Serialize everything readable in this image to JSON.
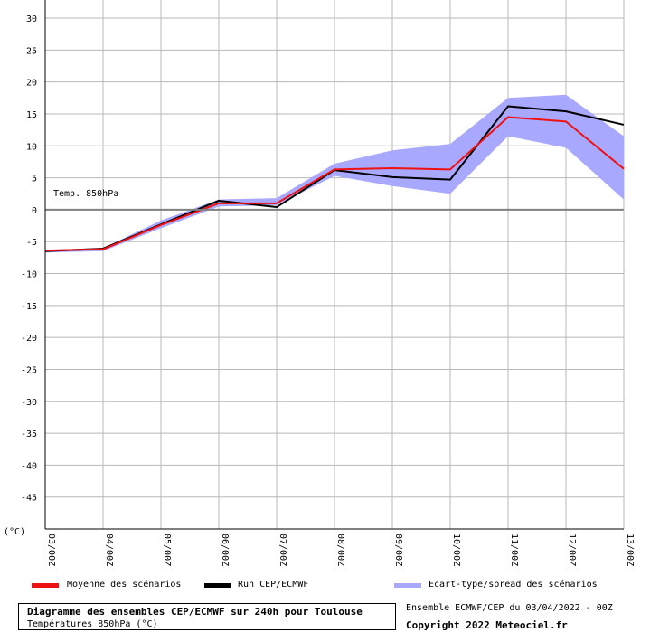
{
  "chart_data": {
    "type": "line",
    "title": "Diagramme des ensembles CEP/ECMWF sur 240h pour Toulouse",
    "subtitle": "Températures 850hPa (°C)",
    "annotation": "Temp. 850hPa",
    "unit_label": "(°C)",
    "ylim": [
      -50,
      30
    ],
    "y_ticks": [
      30,
      25,
      20,
      15,
      10,
      5,
      0,
      -5,
      -10,
      -15,
      -20,
      -25,
      -30,
      -35,
      -40,
      -45
    ],
    "categories": [
      "03/00Z",
      "04/00Z",
      "05/00Z",
      "06/00Z",
      "07/00Z",
      "08/00Z",
      "09/00Z",
      "10/00Z",
      "11/00Z",
      "12/00Z",
      "13/00Z"
    ],
    "grid": true,
    "series": [
      {
        "name": "Moyenne des scénarios",
        "color": "#ee1111",
        "values": [
          -6.4,
          -6.2,
          -2.4,
          1.0,
          1.0,
          6.3,
          6.5,
          6.3,
          14.5,
          13.8,
          6.4
        ]
      },
      {
        "name": "Run CEP/ECMWF",
        "color": "#000000",
        "values": [
          -6.5,
          -6.1,
          -2.3,
          1.4,
          0.4,
          6.2,
          5.1,
          4.7,
          16.2,
          15.4,
          13.3
        ]
      }
    ],
    "spread": {
      "name": "Ecart-type/spread des scénarios",
      "color": "#a8a8ff",
      "upper": [
        -6.3,
        -6.0,
        -1.7,
        1.6,
        1.8,
        7.2,
        9.3,
        10.3,
        17.5,
        18.0,
        11.5
      ],
      "lower": [
        -6.7,
        -6.5,
        -2.9,
        0.5,
        0.7,
        5.3,
        3.7,
        2.5,
        11.5,
        9.7,
        1.6
      ]
    }
  },
  "footer": {
    "ensemble_run": "Ensemble ECMWF/CEP du 03/04/2022 - 00Z",
    "copyright": "Copyright 2022 Meteociel.fr"
  }
}
